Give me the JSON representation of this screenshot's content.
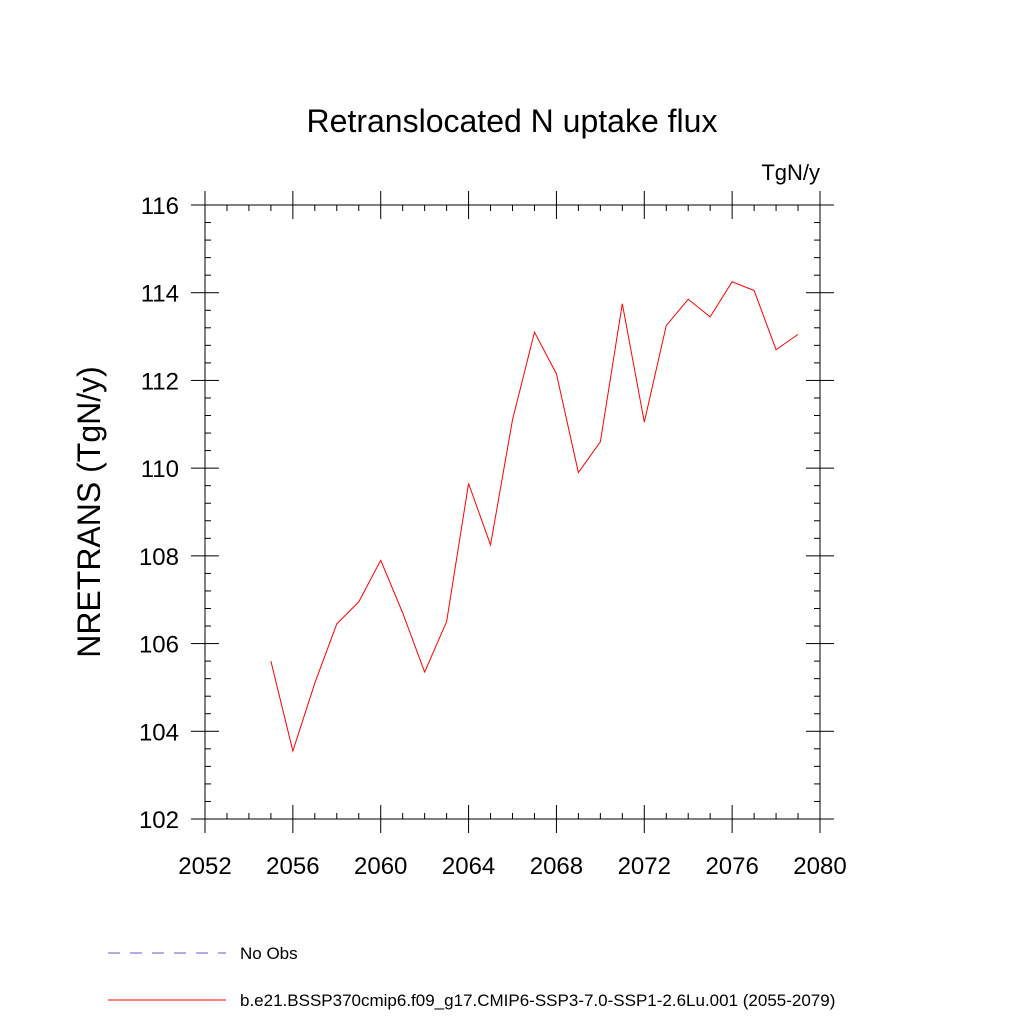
{
  "chart_data": {
    "type": "line",
    "title": "Retranslocated N uptake flux",
    "units": "TgN/y",
    "ylabel": "NRETRANS  (TgN/y)",
    "xlim": [
      2052,
      2080
    ],
    "ylim": [
      102,
      116
    ],
    "xticks": [
      2052,
      2056,
      2060,
      2064,
      2068,
      2072,
      2076,
      2080
    ],
    "yticks": [
      102,
      104,
      106,
      108,
      110,
      112,
      114,
      116
    ],
    "grid": false,
    "legend_position": "bottom",
    "series": [
      {
        "name": "b.e21.BSSP370cmip6.f09_g17.CMIP6-SSP3-7.0-SSP1-2.6Lu.001 (2055-2079)",
        "color": "#ff0000",
        "style": "solid",
        "x": [
          2055,
          2056,
          2057,
          2058,
          2059,
          2060,
          2061,
          2062,
          2063,
          2064,
          2065,
          2066,
          2067,
          2068,
          2069,
          2070,
          2071,
          2072,
          2073,
          2074,
          2075,
          2076,
          2077,
          2078,
          2079
        ],
        "y": [
          105.6,
          103.55,
          105.1,
          106.45,
          106.95,
          107.9,
          106.7,
          105.35,
          106.5,
          109.65,
          108.25,
          111.1,
          113.1,
          112.15,
          109.9,
          110.6,
          113.75,
          111.05,
          113.25,
          113.85,
          113.45,
          114.25,
          114.05,
          112.7,
          113.05
        ]
      },
      {
        "name": "No Obs",
        "color": "#6a5acd",
        "style": "dashed",
        "x": [],
        "y": []
      }
    ]
  }
}
